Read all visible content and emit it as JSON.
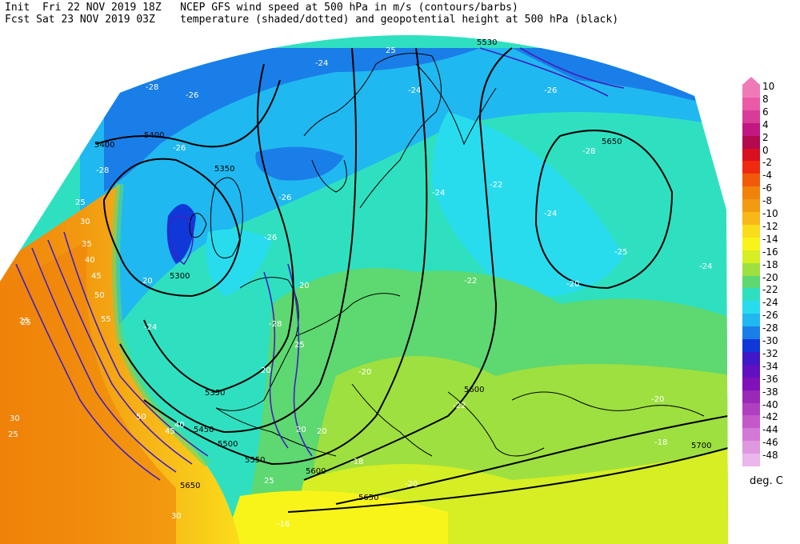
{
  "header": {
    "line1_left": "Init  Fri 22 NOV 2019 18Z",
    "line1_right": "NCEP GFS wind speed at 500 hPa in m/s (contours/barbs)",
    "line2_left": "Fcst Sat 23 NOV 2019 03Z",
    "line2_right": "temperature (shaded/dotted) and geopotential height at 500 hPa (black)"
  },
  "legend": {
    "units": "deg. C",
    "entries": [
      {
        "label": "10",
        "color": "#f07ab8"
      },
      {
        "label": "8",
        "color": "#ea5aa6"
      },
      {
        "label": "6",
        "color": "#d83c98"
      },
      {
        "label": "4",
        "color": "#c01880"
      },
      {
        "label": "2",
        "color": "#b40a50"
      },
      {
        "label": "0",
        "color": "#d81020"
      },
      {
        "label": "-2",
        "color": "#f02a10"
      },
      {
        "label": "-4",
        "color": "#f25a0a"
      },
      {
        "label": "-6",
        "color": "#f0820a"
      },
      {
        "label": "-8",
        "color": "#f29a10"
      },
      {
        "label": "-10",
        "color": "#f7b818"
      },
      {
        "label": "-12",
        "color": "#fbdc1a"
      },
      {
        "label": "-14",
        "color": "#f8f41a"
      },
      {
        "label": "-16",
        "color": "#d6ee24"
      },
      {
        "label": "-18",
        "color": "#9ee040"
      },
      {
        "label": "-20",
        "color": "#5ed870"
      },
      {
        "label": "-22",
        "color": "#2fe0c0"
      },
      {
        "label": "-24",
        "color": "#28dcee"
      },
      {
        "label": "-26",
        "color": "#20b8f0"
      },
      {
        "label": "-28",
        "color": "#1a7ee8"
      },
      {
        "label": "-30",
        "color": "#1038d8"
      },
      {
        "label": "-32",
        "color": "#4018c8"
      },
      {
        "label": "-34",
        "color": "#6010c0"
      },
      {
        "label": "-36",
        "color": "#8010b8"
      },
      {
        "label": "-38",
        "color": "#9a28b8"
      },
      {
        "label": "-40",
        "color": "#b040c0"
      },
      {
        "label": "-42",
        "color": "#c458c8"
      },
      {
        "label": "-44",
        "color": "#d278d6"
      },
      {
        "label": "-46",
        "color": "#de98e0"
      },
      {
        "label": "-48",
        "color": "#eab6ec"
      }
    ]
  },
  "map_labels": {
    "heights": [
      "5530",
      "5400",
      "5400",
      "5350",
      "5300",
      "5350",
      "5450",
      "5500",
      "5550",
      "5600",
      "5650",
      "5650",
      "5700",
      "5650",
      "5600"
    ],
    "temps": [
      "-24",
      "-26",
      "-26",
      "-26",
      "-26",
      "-28",
      "-28",
      "-28",
      "-24",
      "-22",
      "-22",
      "-24",
      "-24",
      "-20",
      "-22",
      "-25",
      "-24",
      "-20",
      "-16",
      "-18",
      "-20",
      "-18",
      "-28",
      "-24",
      "-26",
      "-20"
    ],
    "winds": [
      "25",
      "30",
      "35",
      "40",
      "45",
      "50",
      "55",
      "25",
      "20",
      "20",
      "25",
      "20",
      "30",
      "25",
      "40",
      "45",
      "50",
      "30",
      "25",
      "20",
      "25",
      "20",
      "25",
      "25"
    ]
  }
}
